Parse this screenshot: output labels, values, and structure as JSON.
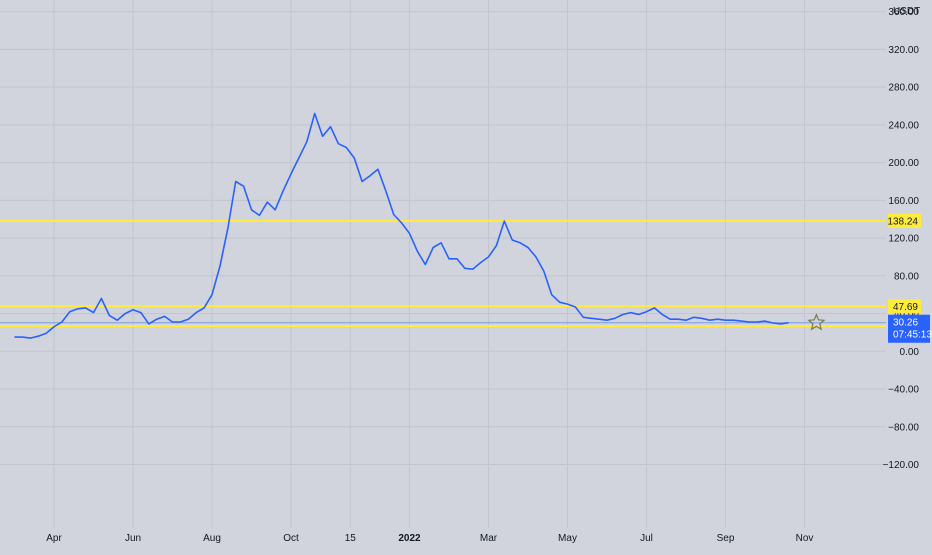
{
  "chart_data": {
    "type": "line",
    "currency_label": "USDT",
    "ylim": [
      -140,
      380
    ],
    "y_ticks": [
      360,
      320,
      280,
      240,
      200,
      160,
      120,
      80,
      40,
      0,
      -40,
      -80,
      -120
    ],
    "y_tick_labels": [
      "360.00",
      "320.00",
      "280.00",
      "240.00",
      "200.00",
      "160.00",
      "120.00",
      "80.00",
      "40.00",
      "0.00",
      "−40.00",
      "−80.00",
      "−120.00"
    ],
    "x_ticks": [
      {
        "label": "Apr",
        "x": 1.0
      },
      {
        "label": "Jun",
        "x": 3.0
      },
      {
        "label": "Aug",
        "x": 5.0
      },
      {
        "label": "Oct",
        "x": 7.0
      },
      {
        "label": "15",
        "x": 8.5
      },
      {
        "label": "2022",
        "x": 10.0,
        "bold": true
      },
      {
        "label": "Mar",
        "x": 12.0
      },
      {
        "label": "May",
        "x": 14.0
      },
      {
        "label": "Jul",
        "x": 16.0
      },
      {
        "label": "Sep",
        "x": 18.0
      },
      {
        "label": "Nov",
        "x": 20.0
      }
    ],
    "grid": true,
    "series": [
      {
        "color": "#2962ff",
        "x": [
          0.0,
          0.2,
          0.4,
          0.6,
          0.8,
          1.0,
          1.2,
          1.4,
          1.6,
          1.8,
          2.0,
          2.2,
          2.4,
          2.6,
          2.8,
          3.0,
          3.2,
          3.4,
          3.6,
          3.8,
          4.0,
          4.2,
          4.4,
          4.6,
          4.8,
          5.0,
          5.2,
          5.4,
          5.6,
          5.8,
          6.0,
          6.2,
          6.4,
          6.6,
          6.8,
          7.0,
          7.2,
          7.4,
          7.6,
          7.8,
          8.0,
          8.2,
          8.4,
          8.6,
          8.8,
          9.0,
          9.2,
          9.4,
          9.6,
          9.8,
          10.0,
          10.2,
          10.4,
          10.6,
          10.8,
          11.0,
          11.2,
          11.4,
          11.6,
          11.8,
          12.0,
          12.2,
          12.4,
          12.6,
          12.8,
          13.0,
          13.2,
          13.4,
          13.6,
          13.8,
          14.0,
          14.2,
          14.4,
          14.6,
          14.8,
          15.0,
          15.2,
          15.4,
          15.6,
          15.8,
          16.0,
          16.2,
          16.4,
          16.6,
          16.8,
          17.0,
          17.2,
          17.4,
          17.6,
          17.8,
          18.0,
          18.2,
          18.4,
          18.6,
          18.8,
          19.0,
          19.2,
          19.4,
          19.6
        ],
        "y": [
          15,
          15,
          14,
          16,
          19,
          26,
          31,
          42,
          45,
          46,
          41,
          56,
          38,
          33,
          40,
          44,
          41,
          29,
          34,
          37,
          31,
          31,
          34,
          41,
          46,
          60,
          90,
          130,
          180,
          175,
          150,
          144,
          158,
          150,
          170,
          188,
          205,
          222,
          252,
          228,
          238,
          220,
          216,
          205,
          180,
          186,
          193,
          170,
          145,
          136,
          125,
          106,
          92,
          110,
          115,
          98,
          98,
          88,
          87,
          94,
          100,
          112,
          138,
          118,
          115,
          110,
          100,
          85,
          60,
          52,
          50,
          47,
          36,
          35,
          34,
          33,
          35,
          39,
          41,
          39,
          42,
          46,
          39,
          34,
          34,
          33,
          36,
          35,
          33,
          34,
          33,
          33,
          32,
          31,
          31,
          32,
          30,
          29,
          30.26
        ]
      }
    ],
    "horizontal_lines": [
      {
        "value": 138.24,
        "label": "138.24",
        "color": "#ffeb3b"
      },
      {
        "value": 47.69,
        "label": "47.69",
        "color": "#ffeb3b"
      },
      {
        "value": 26.66,
        "label": "26.66",
        "color": "#ffeb3b"
      }
    ],
    "last_price": {
      "value": 30.26,
      "label": "30.26",
      "countdown": "07:45:13",
      "color": "#2962ff"
    },
    "star_marker": {
      "x": 20.3,
      "y": 30.26
    }
  }
}
